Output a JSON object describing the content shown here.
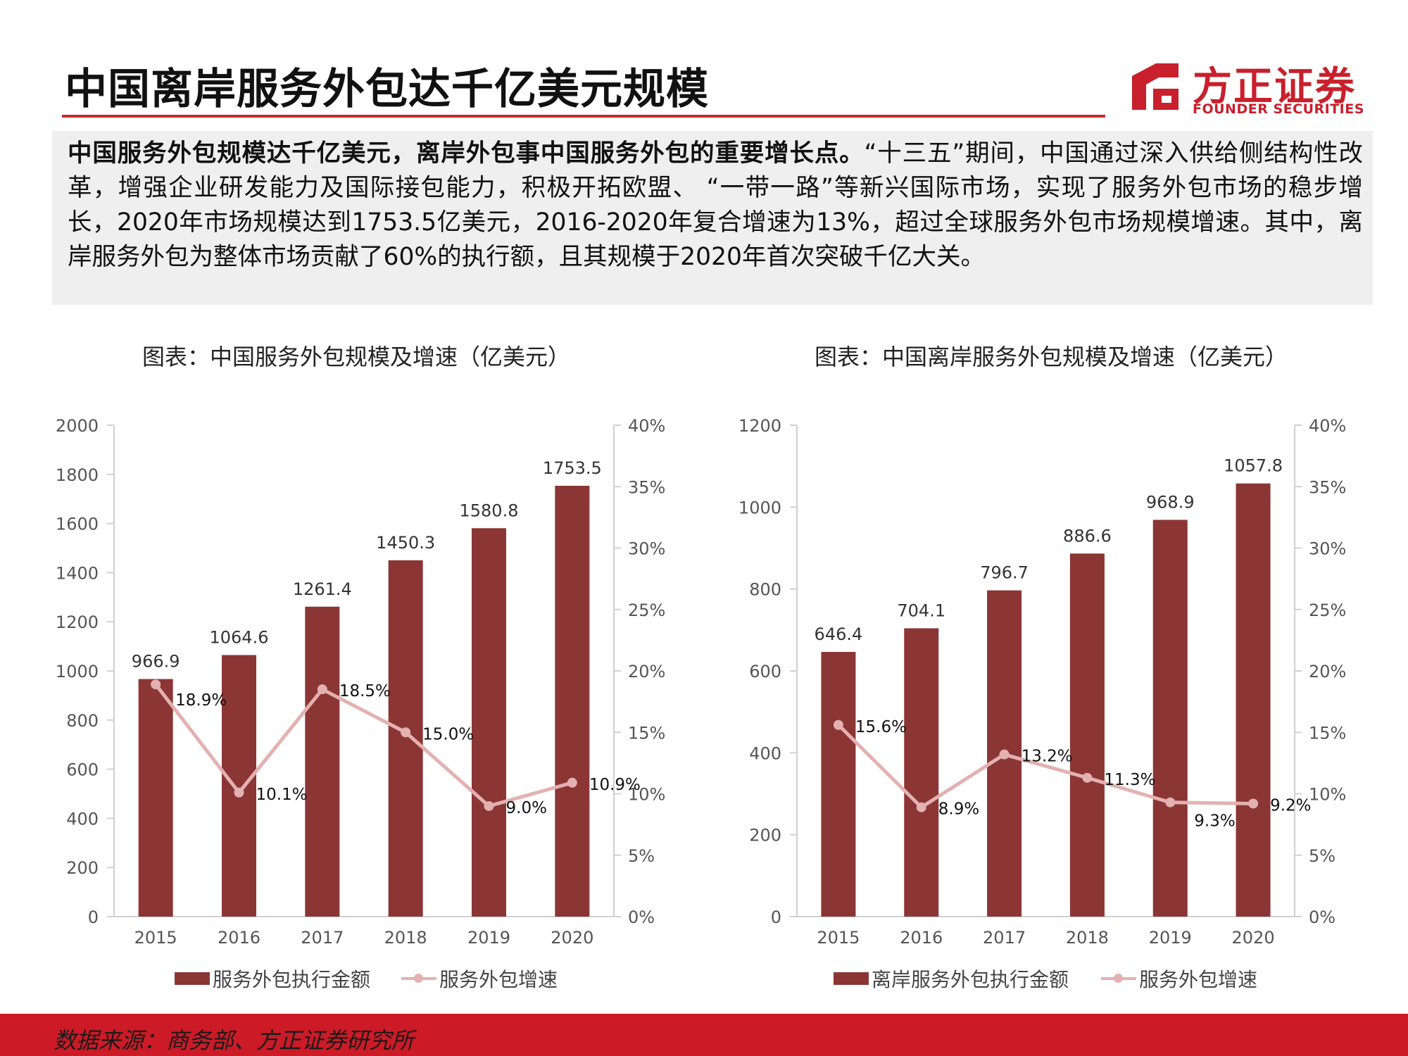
{
  "page": {
    "title": "中国离岸服务外包达千亿美元规模",
    "logo": {
      "cn": "方正证券",
      "en": "FOUNDER SECURITIES"
    },
    "summary_lead": "中国服务外包规模达千亿美元，离岸外包事中国服务外包的重要增长点。",
    "summary_body": "“十三五”期间，中国通过深入供给侧结构性改革，增强企业研发能力及国际接包能力，积极开拓欧盟、 “一带一路”等新兴国际市场，实现了服务外包市场的稳步增长，2020年市场规模达到1753.5亿美元，2016-2020年复合增速为13%，超过全球服务外包市场规模增速。其中，离岸服务外包为整体市场贡献了60%的执行额，且其规模于2020年首次突破千亿大关。",
    "source": "数据来源：商务部、方正证券研究所"
  },
  "colors": {
    "bar": "#8b3634",
    "line": "#e3b1b1",
    "accent": "#c62a2f"
  },
  "chart_data": [
    {
      "type": "bar",
      "title": "图表：中国服务外包规模及增速（亿美元）",
      "categories": [
        "2015",
        "2016",
        "2017",
        "2018",
        "2019",
        "2020"
      ],
      "series": [
        {
          "name": "服务外包执行金额",
          "type": "bar",
          "axis": "left",
          "values": [
            966.9,
            1064.6,
            1261.4,
            1450.3,
            1580.8,
            1753.5
          ],
          "labels": [
            "966.9",
            "1064.6",
            "1261.4",
            "1450.3",
            "1580.8",
            "1753.5"
          ]
        },
        {
          "name": "服务外包增速",
          "type": "line",
          "axis": "right",
          "values": [
            18.9,
            10.1,
            18.5,
            15.0,
            9.0,
            10.9
          ],
          "labels": [
            "18.9%",
            "10.1%",
            "18.5%",
            "15.0%",
            "9.0%",
            "10.9%"
          ]
        }
      ],
      "ylim": [
        0,
        2000
      ],
      "yticks": [
        "0",
        "200",
        "400",
        "600",
        "800",
        "1000",
        "1200",
        "1400",
        "1600",
        "1800",
        "2000"
      ],
      "y2lim": [
        0,
        40
      ],
      "y2ticks": [
        "0%",
        "5%",
        "10%",
        "15%",
        "20%",
        "25%",
        "30%",
        "35%",
        "40%"
      ],
      "grid": false,
      "legend": "bottom"
    },
    {
      "type": "bar",
      "title": "图表：中国离岸服务外包规模及增速（亿美元）",
      "categories": [
        "2015",
        "2016",
        "2017",
        "2018",
        "2019",
        "2020"
      ],
      "series": [
        {
          "name": "离岸服务外包执行金额",
          "type": "bar",
          "axis": "left",
          "values": [
            646.4,
            704.1,
            796.7,
            886.6,
            968.9,
            1057.8
          ],
          "labels": [
            "646.4",
            "704.1",
            "796.7",
            "886.6",
            "968.9",
            "1057.8"
          ]
        },
        {
          "name": "服务外包增速",
          "type": "line",
          "axis": "right",
          "values": [
            15.6,
            8.9,
            13.2,
            11.3,
            9.3,
            9.2
          ],
          "labels": [
            "15.6%",
            "8.9%",
            "13.2%",
            "11.3%",
            "9.3%",
            "9.2%"
          ]
        }
      ],
      "ylim": [
        0,
        1200
      ],
      "yticks": [
        "0",
        "200",
        "400",
        "600",
        "800",
        "1000",
        "1200"
      ],
      "y2lim": [
        0,
        40
      ],
      "y2ticks": [
        "0%",
        "5%",
        "10%",
        "15%",
        "20%",
        "25%",
        "30%",
        "35%",
        "40%"
      ],
      "grid": false,
      "legend": "bottom"
    }
  ]
}
